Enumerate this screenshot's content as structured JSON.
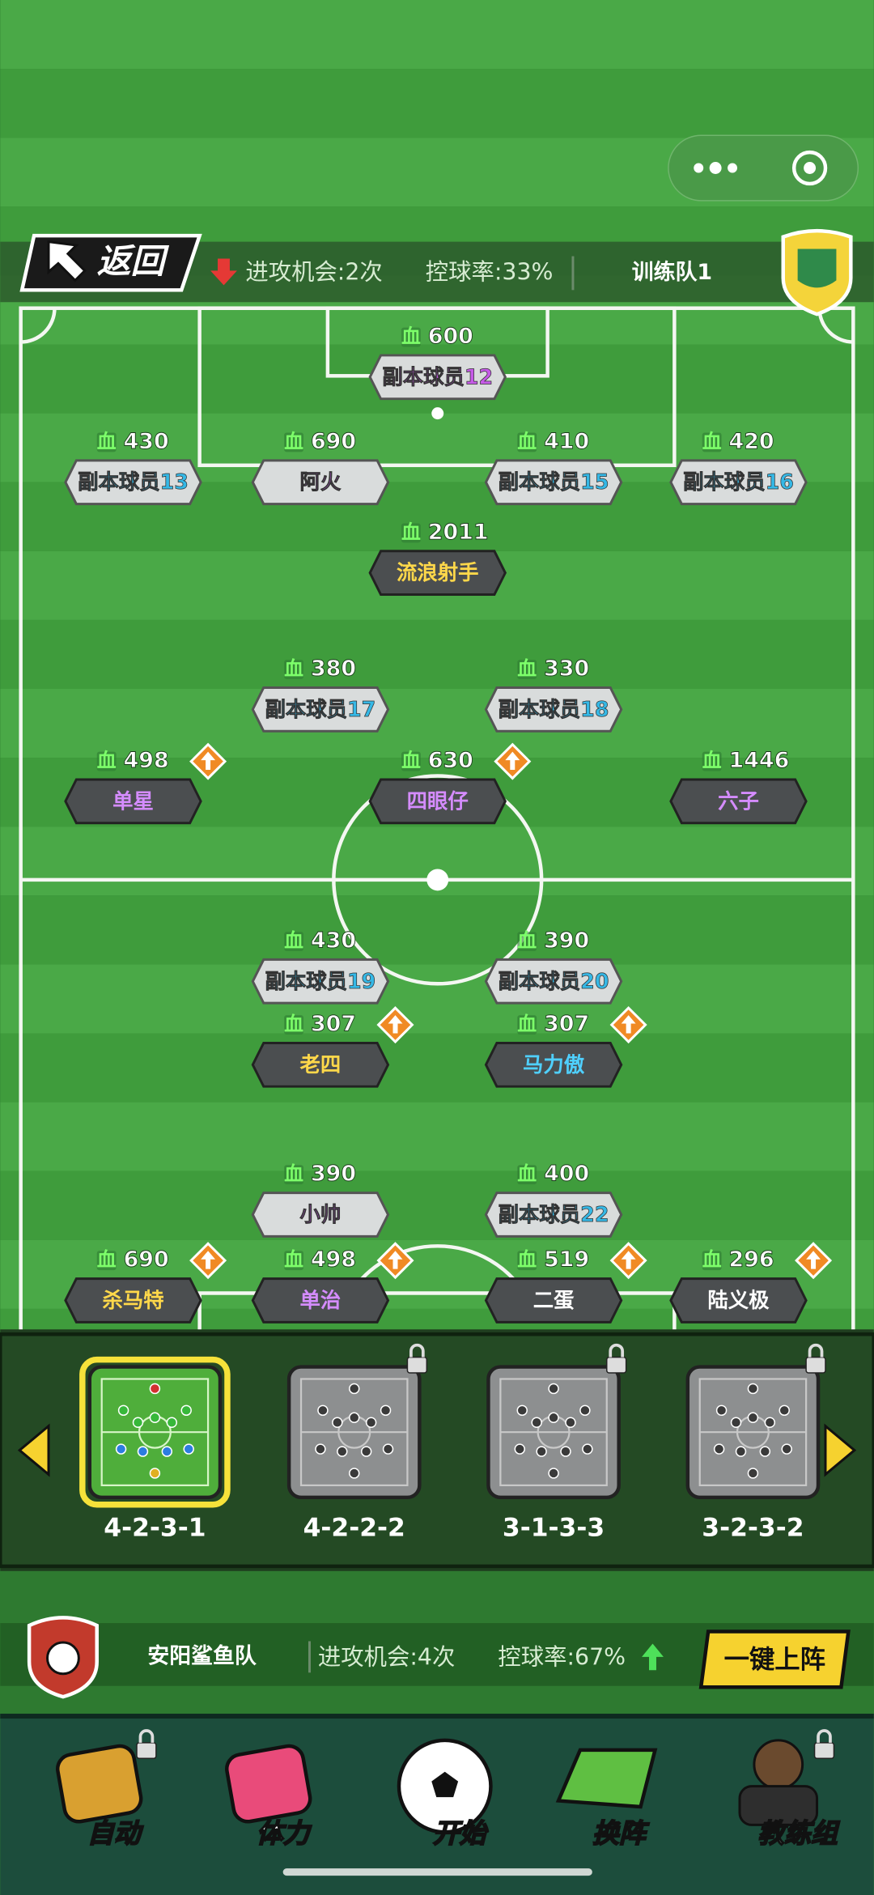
{
  "header": {
    "back": "返回",
    "attack": "进攻机会:2次",
    "possession": "控球率:33%",
    "team": "训练队1"
  },
  "hp_label": "血",
  "players": [
    {
      "hp": 600,
      "name": "副本球员12",
      "color": "#c65be8",
      "box": "light",
      "upgrade": false
    },
    {
      "hp": 430,
      "name": "副本球员13",
      "color": "#35b8e6",
      "box": "light",
      "upgrade": false
    },
    {
      "hp": 690,
      "name": "阿火",
      "color": "#c65be8",
      "box": "light",
      "upgrade": false
    },
    {
      "hp": 410,
      "name": "副本球员15",
      "color": "#35b8e6",
      "box": "light",
      "upgrade": false
    },
    {
      "hp": 420,
      "name": "副本球员16",
      "color": "#35b8e6",
      "box": "light",
      "upgrade": false
    },
    {
      "hp": 2011,
      "name": "流浪射手",
      "color": "#ffd84a",
      "box": "dark",
      "upgrade": false
    },
    {
      "hp": 380,
      "name": "副本球员17",
      "color": "#35b8e6",
      "box": "light",
      "upgrade": false
    },
    {
      "hp": 330,
      "name": "副本球员18",
      "color": "#35b8e6",
      "box": "light",
      "upgrade": false
    },
    {
      "hp": 498,
      "name": "单星",
      "color": "#d58cff",
      "box": "dark",
      "upgrade": true
    },
    {
      "hp": 630,
      "name": "四眼仔",
      "color": "#d58cff",
      "box": "dark",
      "upgrade": true
    },
    {
      "hp": 1446,
      "name": "六子",
      "color": "#d58cff",
      "box": "dark",
      "upgrade": false
    },
    {
      "hp": 430,
      "name": "副本球员19",
      "color": "#35b8e6",
      "box": "light",
      "upgrade": false
    },
    {
      "hp": 390,
      "name": "副本球员20",
      "color": "#35b8e6",
      "box": "light",
      "upgrade": false
    },
    {
      "hp": 307,
      "name": "老四",
      "color": "#ffd84a",
      "box": "dark",
      "upgrade": true
    },
    {
      "hp": 307,
      "name": "马力傲",
      "color": "#4fd0ff",
      "box": "dark",
      "upgrade": true
    },
    {
      "hp": 390,
      "name": "小帅",
      "color": "#c65be8",
      "box": "light",
      "upgrade": false
    },
    {
      "hp": 400,
      "name": "副本球员22",
      "color": "#35b8e6",
      "box": "light",
      "upgrade": false
    },
    {
      "hp": 690,
      "name": "杀马特",
      "color": "#ffd84a",
      "box": "dark",
      "upgrade": true
    },
    {
      "hp": 498,
      "name": "单治",
      "color": "#d58cff",
      "box": "dark",
      "upgrade": true
    },
    {
      "hp": 519,
      "name": "二蛋",
      "color": "#ffffff",
      "box": "dark",
      "upgrade": true
    },
    {
      "hp": 296,
      "name": "陆义极",
      "color": "#ffffff",
      "box": "dark",
      "upgrade": true
    }
  ],
  "formations": [
    {
      "label": "4-2-3-1",
      "selected": true
    },
    {
      "label": "4-2-2-2",
      "selected": false
    },
    {
      "label": "3-1-3-3",
      "selected": false
    },
    {
      "label": "3-2-3-2",
      "selected": false
    }
  ],
  "opponent": {
    "team": "安阳鲨鱼队",
    "attack": "进攻机会:4次",
    "possession": "控球率:67%",
    "button": "一键上阵"
  },
  "menu": [
    "自动",
    "体力",
    "开始",
    "换阵",
    "教练组"
  ]
}
